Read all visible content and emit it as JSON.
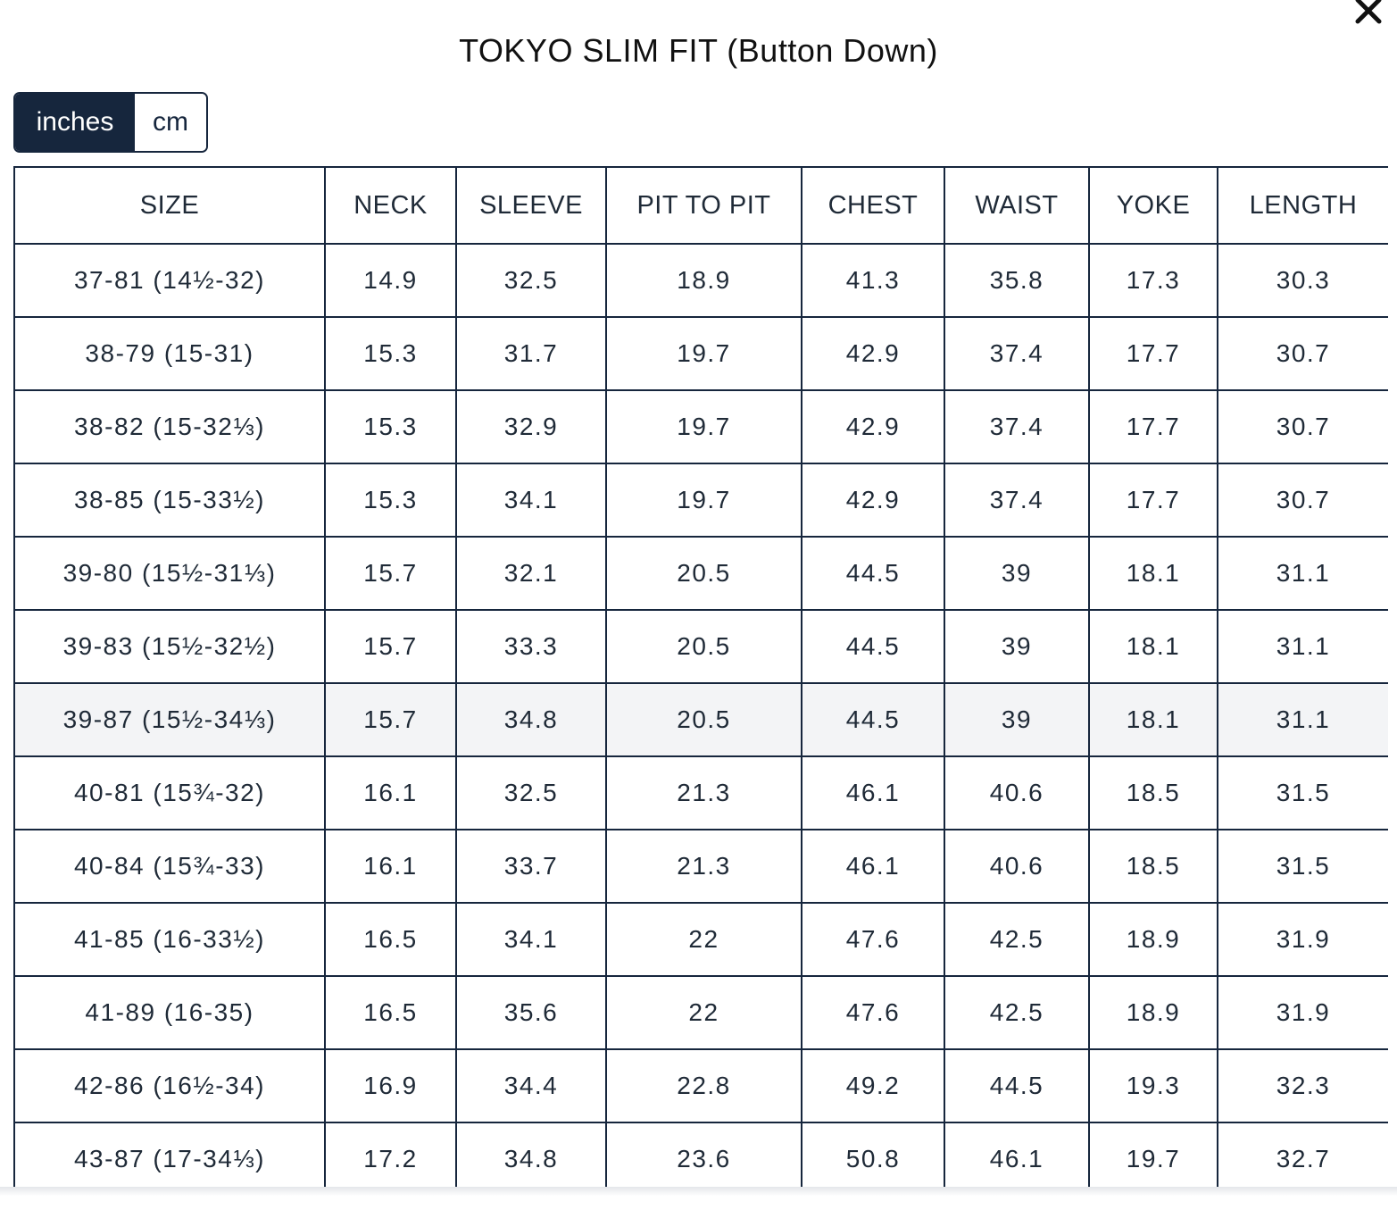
{
  "title": "TOKYO SLIM FIT (Button Down)",
  "units": {
    "options": [
      "inches",
      "cm"
    ],
    "selected": "inches"
  },
  "table": {
    "headers": [
      "SIZE",
      "NECK",
      "SLEEVE",
      "PIT TO PIT",
      "CHEST",
      "WAIST",
      "YOKE",
      "LENGTH"
    ],
    "highlighted_row": 6,
    "rows": [
      [
        "37-81 (14½-32)",
        "14.9",
        "32.5",
        "18.9",
        "41.3",
        "35.8",
        "17.3",
        "30.3"
      ],
      [
        "38-79 (15-31)",
        "15.3",
        "31.7",
        "19.7",
        "42.9",
        "37.4",
        "17.7",
        "30.7"
      ],
      [
        "38-82 (15-32⅓)",
        "15.3",
        "32.9",
        "19.7",
        "42.9",
        "37.4",
        "17.7",
        "30.7"
      ],
      [
        "38-85 (15-33½)",
        "15.3",
        "34.1",
        "19.7",
        "42.9",
        "37.4",
        "17.7",
        "30.7"
      ],
      [
        "39-80 (15½-31⅓)",
        "15.7",
        "32.1",
        "20.5",
        "44.5",
        "39",
        "18.1",
        "31.1"
      ],
      [
        "39-83 (15½-32½)",
        "15.7",
        "33.3",
        "20.5",
        "44.5",
        "39",
        "18.1",
        "31.1"
      ],
      [
        "39-87 (15½-34⅓)",
        "15.7",
        "34.8",
        "20.5",
        "44.5",
        "39",
        "18.1",
        "31.1"
      ],
      [
        "40-81 (15¾-32)",
        "16.1",
        "32.5",
        "21.3",
        "46.1",
        "40.6",
        "18.5",
        "31.5"
      ],
      [
        "40-84 (15¾-33)",
        "16.1",
        "33.7",
        "21.3",
        "46.1",
        "40.6",
        "18.5",
        "31.5"
      ],
      [
        "41-85 (16-33½)",
        "16.5",
        "34.1",
        "22",
        "47.6",
        "42.5",
        "18.9",
        "31.9"
      ],
      [
        "41-89 (16-35)",
        "16.5",
        "35.6",
        "22",
        "47.6",
        "42.5",
        "18.9",
        "31.9"
      ],
      [
        "42-86 (16½-34)",
        "16.9",
        "34.4",
        "22.8",
        "49.2",
        "44.5",
        "19.3",
        "32.3"
      ],
      [
        "43-87 (17-34⅓)",
        "17.2",
        "34.8",
        "23.6",
        "50.8",
        "46.1",
        "19.7",
        "32.7"
      ]
    ]
  },
  "colors": {
    "navy": "#16263d",
    "highlight_row": "#f3f4f6"
  },
  "icons": {
    "close": "close-icon"
  }
}
